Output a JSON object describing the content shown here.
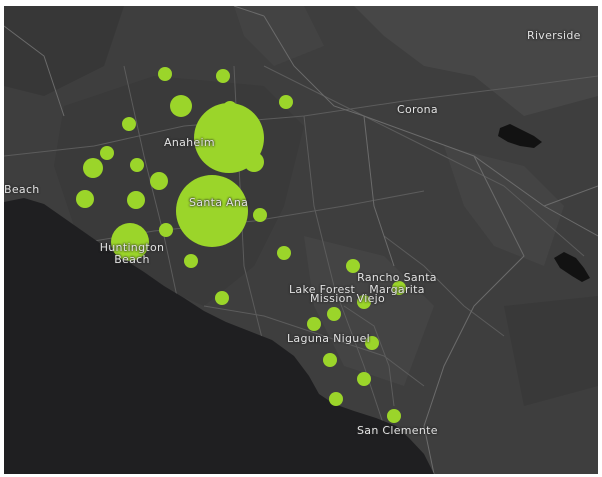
{
  "map": {
    "labels": {
      "riverside": "Riverside",
      "corona": "Corona",
      "anaheim": "Anaheim",
      "beach": "Beach",
      "santa_ana": "Santa Ana",
      "huntington_beach": "Huntington Beach",
      "rancho_santa_margarita": "Rancho Santa Margarita",
      "lake_forest": "Lake Forest",
      "mission_viejo": "Mission Viejo",
      "laguna_niguel": "Laguna Niguel",
      "san_clemente": "San Clemente"
    },
    "colors": {
      "land": "#3e3e3e",
      "land_dark": "#353535",
      "land_light": "#474747",
      "ocean": "#1f1f21",
      "lake": "#121212",
      "roads": "#5c5c5c",
      "boundaries": "#6a6a6a",
      "symbol": "#9bd52a",
      "label": "#e2e2e2"
    },
    "symbol_type": "proportional-circle"
  }
}
